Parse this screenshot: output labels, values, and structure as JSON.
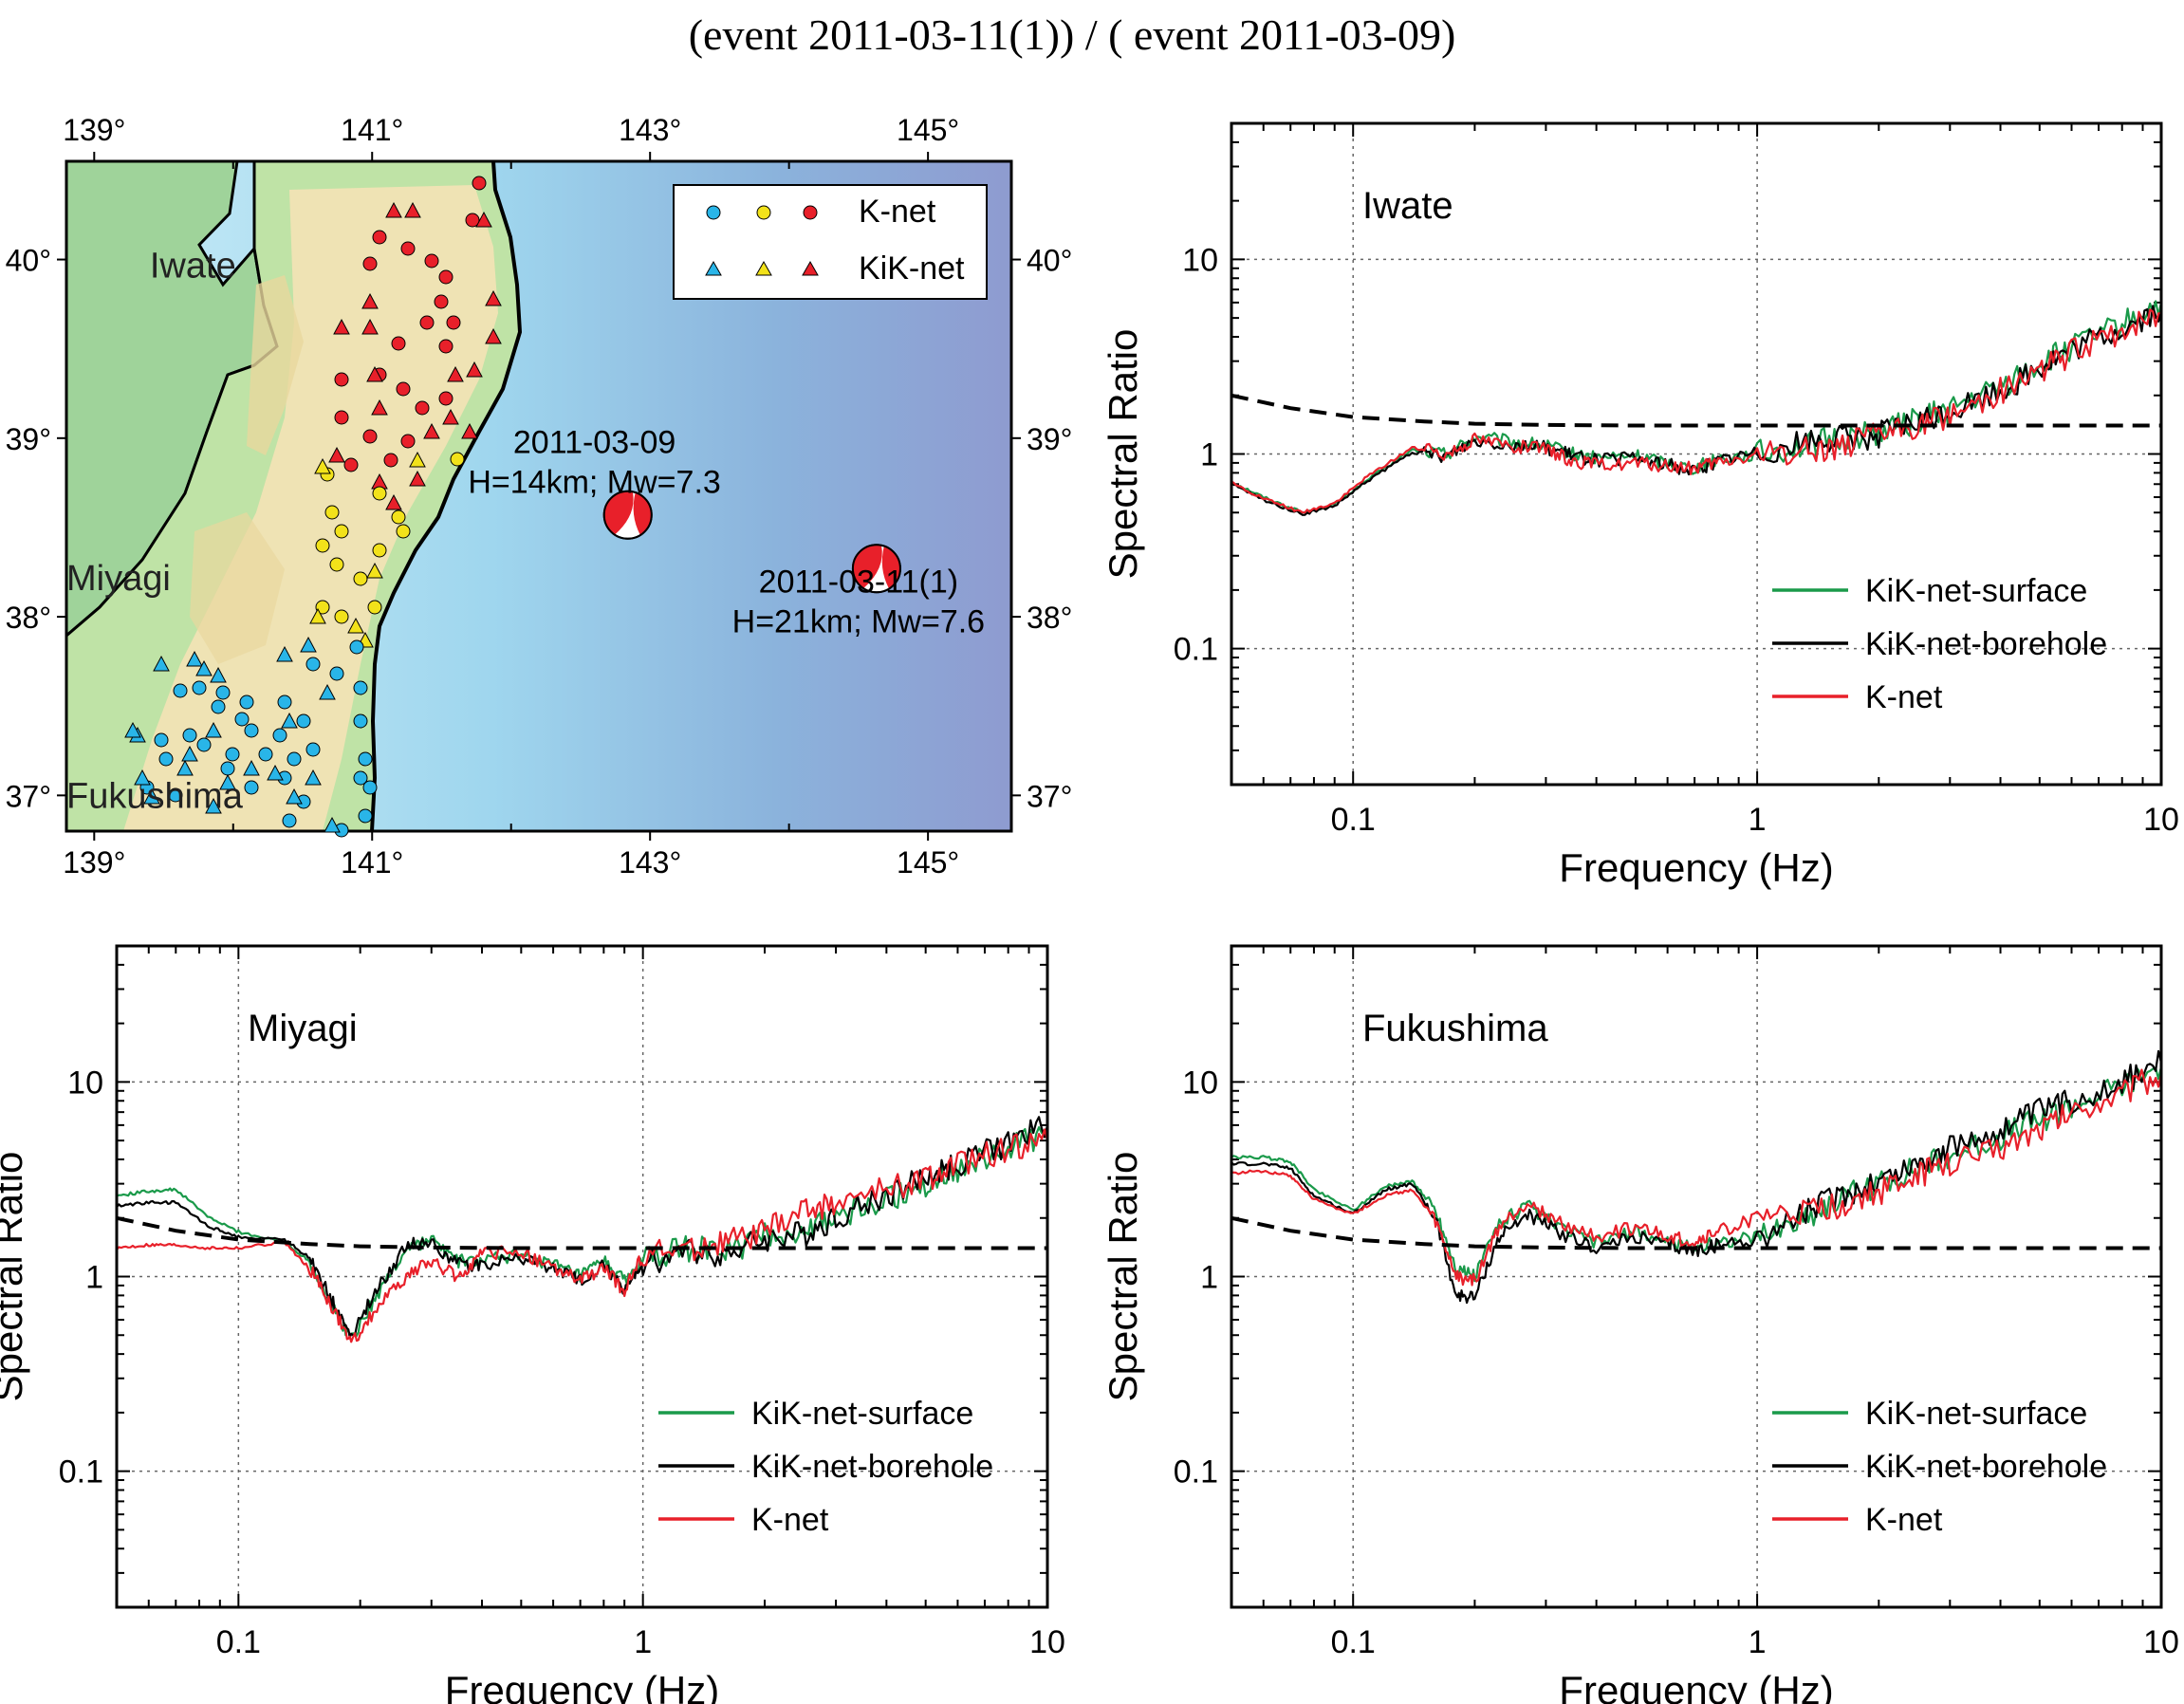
{
  "figure_title": "(event 2011-03-11(1)) / ( event 2011-03-09)",
  "colors": {
    "kiknet_surface": "#1a9a4a",
    "kiknet_borehole": "#000000",
    "knet": "#e8202a",
    "reference": "#000000",
    "station_blue": "#29b5e8",
    "station_yellow": "#f2e21a",
    "station_red": "#e8202a"
  },
  "map": {
    "x_ticks_top": [
      "139°",
      "141°",
      "143°",
      "145°"
    ],
    "x_ticks_bottom": [
      "139°",
      "141°",
      "143°",
      "145°"
    ],
    "y_ticks_left": [
      "40°",
      "39°",
      "38°",
      "37°"
    ],
    "y_ticks_right": [
      "40°",
      "39°",
      "38°",
      "37°"
    ],
    "lon_range": [
      138.8,
      145.6
    ],
    "lat_range": [
      36.8,
      40.55
    ],
    "regions": [
      {
        "label": "Iwate",
        "lon": 139.4,
        "lat": 39.9
      },
      {
        "label": "Miyagi",
        "lon": 138.8,
        "lat": 38.15
      },
      {
        "label": "Fukushima",
        "lon": 138.8,
        "lat": 36.93
      }
    ],
    "legend": {
      "knet_label": "K-net",
      "kiknet_label": "KiK-net"
    },
    "events": [
      {
        "date": "2011-03-09",
        "info": "H=14km; Mw=7.3",
        "lon": 142.84,
        "lat": 38.57,
        "label_lon": 142.6,
        "label_lat": 38.8
      },
      {
        "date": "2011-03-11(1)",
        "info": "H=21km; Mw=7.6",
        "lon": 144.63,
        "lat": 38.27,
        "label_lon": 144.5,
        "label_lat": 38.02
      }
    ]
  },
  "chart_data": [
    {
      "type": "line",
      "region": "Iwate",
      "xlabel": "Frequency (Hz)",
      "ylabel": "Spectral Ratio",
      "xscale": "log",
      "yscale": "log",
      "xlim": [
        0.05,
        10
      ],
      "ylim": [
        0.02,
        50
      ],
      "x_ticks": [
        "0.1",
        "1",
        "10"
      ],
      "y_ticks": [
        "0.1",
        "1",
        "10"
      ],
      "grid": true,
      "legend_position": "bottom-right",
      "series": [
        {
          "name": "KiK-net-surface",
          "color": "#1a9a4a",
          "x": [
            0.05,
            0.06,
            0.075,
            0.09,
            0.11,
            0.14,
            0.17,
            0.2,
            0.25,
            0.3,
            0.35,
            0.4,
            0.5,
            0.6,
            0.7,
            0.8,
            1.0,
            1.3,
            1.6,
            2.0,
            2.5,
            3.0,
            4.0,
            5.0,
            6.0,
            8.0,
            10.0
          ],
          "y": [
            0.72,
            0.6,
            0.5,
            0.55,
            0.75,
            1.05,
            1.0,
            1.22,
            1.15,
            1.1,
            1.0,
            0.95,
            0.98,
            0.9,
            0.85,
            0.95,
            1.0,
            1.1,
            1.2,
            1.3,
            1.5,
            1.7,
            2.2,
            2.9,
            3.5,
            4.6,
            6.0
          ]
        },
        {
          "name": "KiK-net-borehole",
          "color": "#000000",
          "x": [
            0.05,
            0.06,
            0.075,
            0.09,
            0.11,
            0.14,
            0.17,
            0.2,
            0.25,
            0.3,
            0.35,
            0.4,
            0.5,
            0.6,
            0.7,
            0.8,
            1.0,
            1.3,
            1.6,
            2.0,
            2.5,
            3.0,
            4.0,
            5.0,
            6.0,
            8.0,
            10.0
          ],
          "y": [
            0.7,
            0.58,
            0.49,
            0.54,
            0.74,
            1.02,
            0.98,
            1.18,
            1.12,
            1.08,
            0.98,
            0.93,
            0.95,
            0.88,
            0.82,
            0.92,
            1.02,
            1.15,
            1.2,
            1.25,
            1.45,
            1.65,
            2.1,
            2.8,
            3.4,
            4.4,
            5.5
          ]
        },
        {
          "name": "K-net",
          "color": "#e8202a",
          "x": [
            0.05,
            0.06,
            0.075,
            0.09,
            0.11,
            0.14,
            0.17,
            0.2,
            0.25,
            0.3,
            0.35,
            0.4,
            0.5,
            0.6,
            0.7,
            0.8,
            1.0,
            1.3,
            1.6,
            2.0,
            2.5,
            3.0,
            4.0,
            5.0,
            6.0,
            8.0,
            10.0
          ],
          "y": [
            0.71,
            0.59,
            0.5,
            0.56,
            0.78,
            1.08,
            1.0,
            1.2,
            1.1,
            1.05,
            0.92,
            0.88,
            0.9,
            0.86,
            0.84,
            0.9,
            0.98,
            1.05,
            1.1,
            1.25,
            1.4,
            1.6,
            2.1,
            2.7,
            3.3,
            4.3,
            5.3
          ]
        },
        {
          "name": "reference",
          "color": "#000000",
          "dashed": true,
          "x": [
            0.05,
            0.07,
            0.1,
            0.15,
            0.2,
            0.3,
            0.5,
            1.0,
            2.0,
            5.0,
            10.0
          ],
          "y": [
            2.0,
            1.72,
            1.55,
            1.47,
            1.43,
            1.41,
            1.4,
            1.4,
            1.4,
            1.4,
            1.4
          ]
        }
      ]
    },
    {
      "type": "line",
      "region": "Miyagi",
      "xlabel": "Frequency (Hz)",
      "ylabel": "Spectral Ratio",
      "xscale": "log",
      "yscale": "log",
      "xlim": [
        0.05,
        10
      ],
      "ylim": [
        0.02,
        50
      ],
      "x_ticks": [
        "0.1",
        "1",
        "10"
      ],
      "y_ticks": [
        "0.1",
        "1",
        "10"
      ],
      "grid": true,
      "legend_position": "bottom-right",
      "series": [
        {
          "name": "KiK-net-surface",
          "color": "#1a9a4a",
          "x": [
            0.05,
            0.06,
            0.07,
            0.085,
            0.1,
            0.13,
            0.15,
            0.17,
            0.19,
            0.22,
            0.26,
            0.3,
            0.35,
            0.4,
            0.5,
            0.6,
            0.7,
            0.8,
            0.9,
            1.0,
            1.3,
            1.6,
            2.0,
            2.5,
            3.0,
            4.0,
            5.0,
            6.0,
            8.0,
            10.0
          ],
          "y": [
            2.6,
            2.75,
            2.8,
            2.0,
            1.7,
            1.5,
            1.2,
            0.7,
            0.48,
            0.8,
            1.4,
            1.55,
            1.2,
            1.2,
            1.3,
            1.15,
            1.0,
            1.2,
            0.95,
            1.2,
            1.4,
            1.35,
            1.6,
            1.7,
            2.0,
            2.5,
            3.0,
            3.6,
            4.5,
            5.5
          ]
        },
        {
          "name": "KiK-net-borehole",
          "color": "#000000",
          "x": [
            0.05,
            0.06,
            0.07,
            0.085,
            0.1,
            0.13,
            0.15,
            0.17,
            0.19,
            0.22,
            0.26,
            0.3,
            0.35,
            0.4,
            0.5,
            0.6,
            0.7,
            0.8,
            0.9,
            1.0,
            1.3,
            1.6,
            2.0,
            2.5,
            3.0,
            4.0,
            5.0,
            6.0,
            8.0,
            10.0
          ],
          "y": [
            2.3,
            2.4,
            2.4,
            1.8,
            1.6,
            1.55,
            1.25,
            0.75,
            0.5,
            0.85,
            1.45,
            1.5,
            1.15,
            1.15,
            1.25,
            1.1,
            0.95,
            1.15,
            0.85,
            1.15,
            1.35,
            1.3,
            1.55,
            1.65,
            2.0,
            2.6,
            3.2,
            3.8,
            4.8,
            6.0
          ]
        },
        {
          "name": "K-net",
          "color": "#e8202a",
          "x": [
            0.05,
            0.06,
            0.07,
            0.085,
            0.1,
            0.13,
            0.15,
            0.17,
            0.19,
            0.22,
            0.26,
            0.3,
            0.35,
            0.4,
            0.5,
            0.6,
            0.7,
            0.8,
            0.9,
            1.0,
            1.3,
            1.6,
            2.0,
            2.5,
            3.0,
            4.0,
            5.0,
            6.0,
            8.0,
            10.0
          ],
          "y": [
            1.4,
            1.45,
            1.45,
            1.4,
            1.4,
            1.5,
            1.1,
            0.7,
            0.45,
            0.7,
            1.0,
            1.2,
            1.0,
            1.3,
            1.35,
            1.1,
            0.95,
            1.1,
            0.85,
            1.3,
            1.4,
            1.5,
            1.7,
            2.2,
            2.4,
            2.8,
            3.2,
            3.7,
            4.6,
            5.0
          ]
        },
        {
          "name": "reference",
          "color": "#000000",
          "dashed": true,
          "x": [
            0.05,
            0.07,
            0.1,
            0.15,
            0.2,
            0.3,
            0.5,
            1.0,
            2.0,
            5.0,
            10.0
          ],
          "y": [
            2.0,
            1.72,
            1.55,
            1.47,
            1.43,
            1.41,
            1.4,
            1.4,
            1.4,
            1.4,
            1.4
          ]
        }
      ]
    },
    {
      "type": "line",
      "region": "Fukushima",
      "xlabel": "Frequency (Hz)",
      "ylabel": "Spectral Ratio",
      "xscale": "log",
      "yscale": "log",
      "xlim": [
        0.05,
        10
      ],
      "ylim": [
        0.02,
        50
      ],
      "x_ticks": [
        "0.1",
        "1",
        "10"
      ],
      "y_ticks": [
        "0.1",
        "1",
        "10"
      ],
      "grid": true,
      "legend_position": "bottom-right",
      "series": [
        {
          "name": "KiK-net-surface",
          "color": "#1a9a4a",
          "x": [
            0.05,
            0.06,
            0.07,
            0.08,
            0.1,
            0.12,
            0.14,
            0.16,
            0.18,
            0.2,
            0.23,
            0.27,
            0.32,
            0.4,
            0.5,
            0.6,
            0.7,
            0.8,
            1.0,
            1.3,
            1.6,
            2.0,
            2.5,
            3.0,
            4.0,
            5.0,
            6.0,
            8.0,
            10.0
          ],
          "y": [
            4.1,
            4.1,
            3.9,
            2.8,
            2.2,
            2.9,
            3.1,
            2.2,
            1.1,
            1.0,
            1.9,
            2.3,
            1.8,
            1.5,
            1.7,
            1.5,
            1.4,
            1.5,
            1.6,
            2.0,
            2.5,
            3.0,
            3.6,
            4.2,
            5.2,
            6.4,
            7.5,
            9.5,
            12.0
          ]
        },
        {
          "name": "KiK-net-borehole",
          "color": "#000000",
          "x": [
            0.05,
            0.06,
            0.07,
            0.08,
            0.1,
            0.12,
            0.14,
            0.16,
            0.18,
            0.2,
            0.23,
            0.27,
            0.32,
            0.4,
            0.5,
            0.6,
            0.7,
            0.8,
            1.0,
            1.3,
            1.6,
            2.0,
            2.5,
            3.0,
            4.0,
            5.0,
            6.0,
            8.0,
            10.0
          ],
          "y": [
            3.8,
            3.8,
            3.6,
            2.6,
            2.1,
            2.8,
            3.0,
            2.0,
            0.8,
            0.78,
            1.6,
            2.1,
            1.7,
            1.4,
            1.6,
            1.45,
            1.35,
            1.45,
            1.55,
            2.1,
            2.6,
            3.1,
            3.8,
            4.5,
            5.6,
            7.0,
            8.0,
            10.0,
            12.5
          ]
        },
        {
          "name": "K-net",
          "color": "#e8202a",
          "x": [
            0.05,
            0.06,
            0.07,
            0.08,
            0.1,
            0.12,
            0.14,
            0.16,
            0.18,
            0.2,
            0.23,
            0.27,
            0.32,
            0.4,
            0.5,
            0.6,
            0.7,
            0.8,
            1.0,
            1.3,
            1.6,
            2.0,
            2.5,
            3.0,
            4.0,
            5.0,
            6.0,
            8.0,
            10.0
          ],
          "y": [
            3.4,
            3.5,
            3.3,
            2.5,
            2.1,
            2.6,
            2.8,
            1.9,
            1.0,
            0.95,
            1.8,
            2.4,
            1.9,
            1.6,
            1.8,
            1.6,
            1.5,
            1.7,
            2.0,
            2.1,
            2.3,
            2.7,
            3.3,
            3.8,
            4.6,
            5.8,
            7.0,
            8.8,
            11.0
          ]
        },
        {
          "name": "reference",
          "color": "#000000",
          "dashed": true,
          "x": [
            0.05,
            0.07,
            0.1,
            0.15,
            0.2,
            0.3,
            0.5,
            1.0,
            2.0,
            5.0,
            10.0
          ],
          "y": [
            2.0,
            1.72,
            1.55,
            1.47,
            1.43,
            1.41,
            1.4,
            1.4,
            1.4,
            1.4,
            1.4
          ]
        }
      ]
    }
  ]
}
